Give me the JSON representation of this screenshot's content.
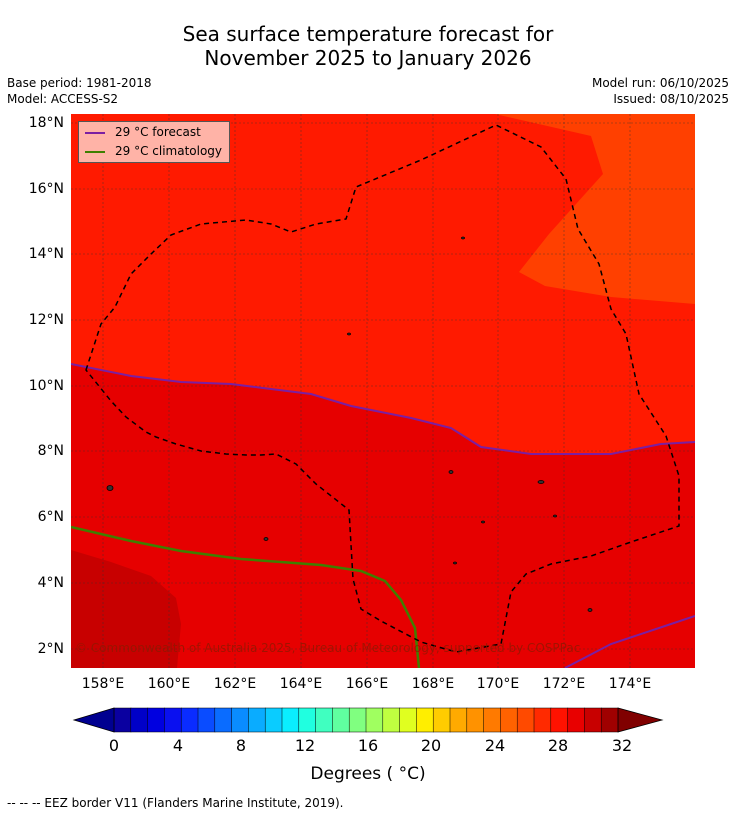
{
  "title": {
    "line1": "Sea surface temperature forecast for",
    "line2": "November 2025 to January 2026"
  },
  "meta": {
    "base_period": "Base period: 1981-2018",
    "model": "Model: ACCESS-S2",
    "model_run": "Model run: 06/10/2025",
    "issued": "Issued: 08/10/2025"
  },
  "legend": {
    "forecast_label": "29 °C  forecast",
    "climatology_label": "29 °C  climatology",
    "forecast_color": "#7b1fa2",
    "climatology_color": "#3f7f00"
  },
  "axes": {
    "lat_ticks": [
      "18°N",
      "16°N",
      "14°N",
      "12°N",
      "10°N",
      "8°N",
      "6°N",
      "4°N",
      "2°N"
    ],
    "lon_ticks": [
      "158°E",
      "160°E",
      "162°E",
      "164°E",
      "166°E",
      "168°E",
      "170°E",
      "172°E",
      "174°E"
    ]
  },
  "colorbar": {
    "ticks": [
      "0",
      "4",
      "8",
      "12",
      "16",
      "20",
      "24",
      "28",
      "32"
    ],
    "label": "Degrees ( °C)",
    "colors": [
      "#0a00a0",
      "#0000c8",
      "#0000e0",
      "#0a10f0",
      "#0a2cff",
      "#0a4cff",
      "#0a6cff",
      "#0a8cff",
      "#0aacff",
      "#0accff",
      "#0aeeff",
      "#20ffe0",
      "#40ffc0",
      "#60ffa0",
      "#80ff80",
      "#a0ff60",
      "#c0ff40",
      "#e0ff20",
      "#ffee00",
      "#ffcc00",
      "#ffaa00",
      "#ff9200",
      "#ff7a00",
      "#ff6200",
      "#ff4a00",
      "#ff2a00",
      "#ff1200",
      "#e80000",
      "#c80000",
      "#a00000"
    ],
    "under_color": "#000090",
    "over_color": "#800000"
  },
  "colors": {
    "sst_warm_strip": "#ff4000",
    "sst_main": "#ff1a00",
    "sst_south": "#e60000",
    "sst_far_south": "#c80000"
  },
  "copyright": "© Commonwealth of Australia 2025, Bureau of Meteorology, supported by COSPPac",
  "footnote": "--  --  -- EEZ border V11 (Flanders Marine Institute, 2019)."
}
